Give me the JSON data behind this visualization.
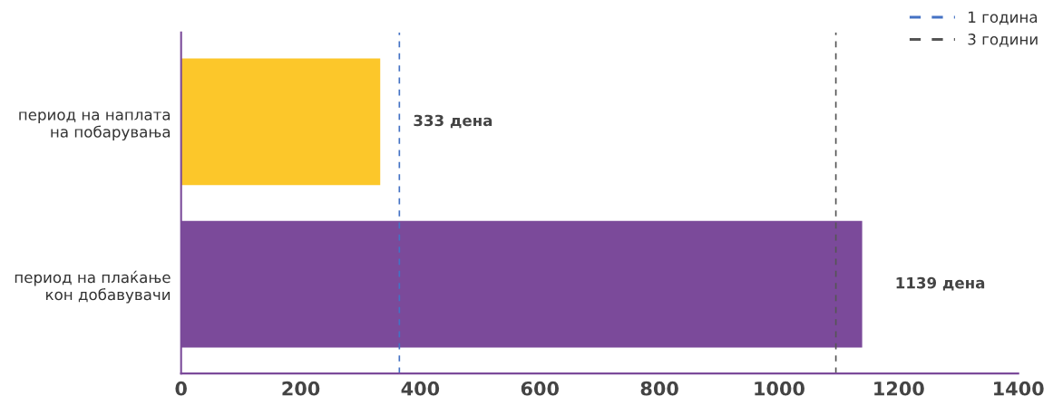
{
  "chart_data": {
    "type": "bar",
    "orientation": "horizontal",
    "categories": [
      "период на наплата\nна побарувања",
      "период на плаќање\nкон добавувачи"
    ],
    "values": [
      333,
      1139
    ],
    "colors": [
      "#fcc72a",
      "#7b4a9a"
    ],
    "value_labels": [
      "333 дена",
      "1139 дена"
    ],
    "xlim": [
      0,
      1400
    ],
    "xticks": [
      0,
      200,
      400,
      600,
      800,
      1000,
      1200,
      1400
    ],
    "grid": false,
    "legend": "top right",
    "ref_lines": [
      {
        "axis": "x",
        "value": 365,
        "label": "1 година",
        "color": "#4472c4",
        "line_style": "dashed"
      },
      {
        "axis": "x",
        "value": 1095,
        "label": "3 години",
        "color": "#555555",
        "line_style": "dashed"
      }
    ]
  }
}
